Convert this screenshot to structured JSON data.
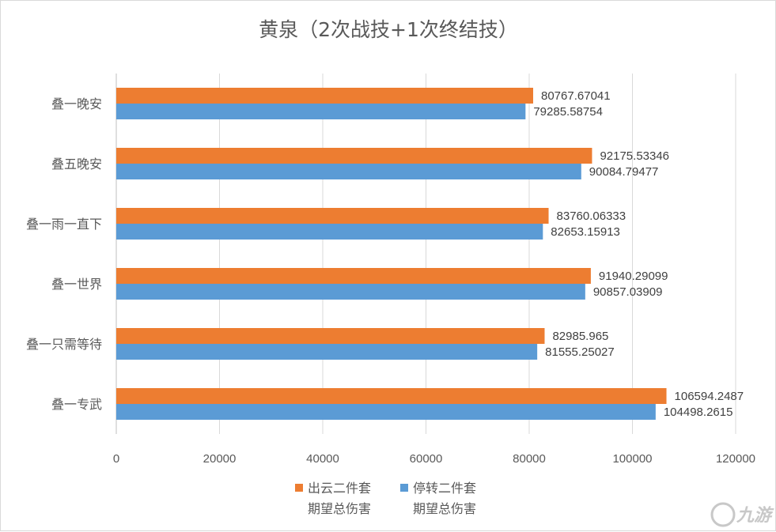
{
  "chart_data": {
    "type": "bar",
    "orientation": "horizontal",
    "title": "黄泉（2次战技+1次终结技）",
    "categories": [
      "叠一晚安",
      "叠五晚安",
      "叠一雨一直下",
      "叠一世界",
      "叠一只需等待",
      "叠一专武"
    ],
    "series": [
      {
        "name": "出云二件套期望总伤害",
        "legend_lines": [
          "出云二件套",
          "期望总伤害"
        ],
        "color": "#ed7d31",
        "values": [
          80767.67041,
          92175.53346,
          83760.06333,
          91940.29099,
          82985.965,
          106594.2487
        ],
        "labels": [
          "80767.67041",
          "92175.53346",
          "83760.06333",
          "91940.29099",
          "82985.965",
          "106594.2487"
        ]
      },
      {
        "name": "停转二件套期望总伤害",
        "legend_lines": [
          "停转二件套",
          "期望总伤害"
        ],
        "color": "#5b9bd5",
        "values": [
          79285.58754,
          90084.79477,
          82653.15913,
          90857.03909,
          81555.25027,
          104498.2615
        ],
        "labels": [
          "79285.58754",
          "90084.79477",
          "82653.15913",
          "90857.03909",
          "81555.25027",
          "104498.2615"
        ]
      }
    ],
    "xlim": [
      0,
      120000
    ],
    "ticks": [
      0,
      20000,
      40000,
      60000,
      80000,
      100000,
      120000
    ],
    "tick_labels": [
      "0",
      "20000",
      "40000",
      "60000",
      "80000",
      "100000",
      "120000"
    ],
    "grid": true,
    "legend_position": "bottom"
  },
  "watermark": {
    "text": "九游"
  }
}
